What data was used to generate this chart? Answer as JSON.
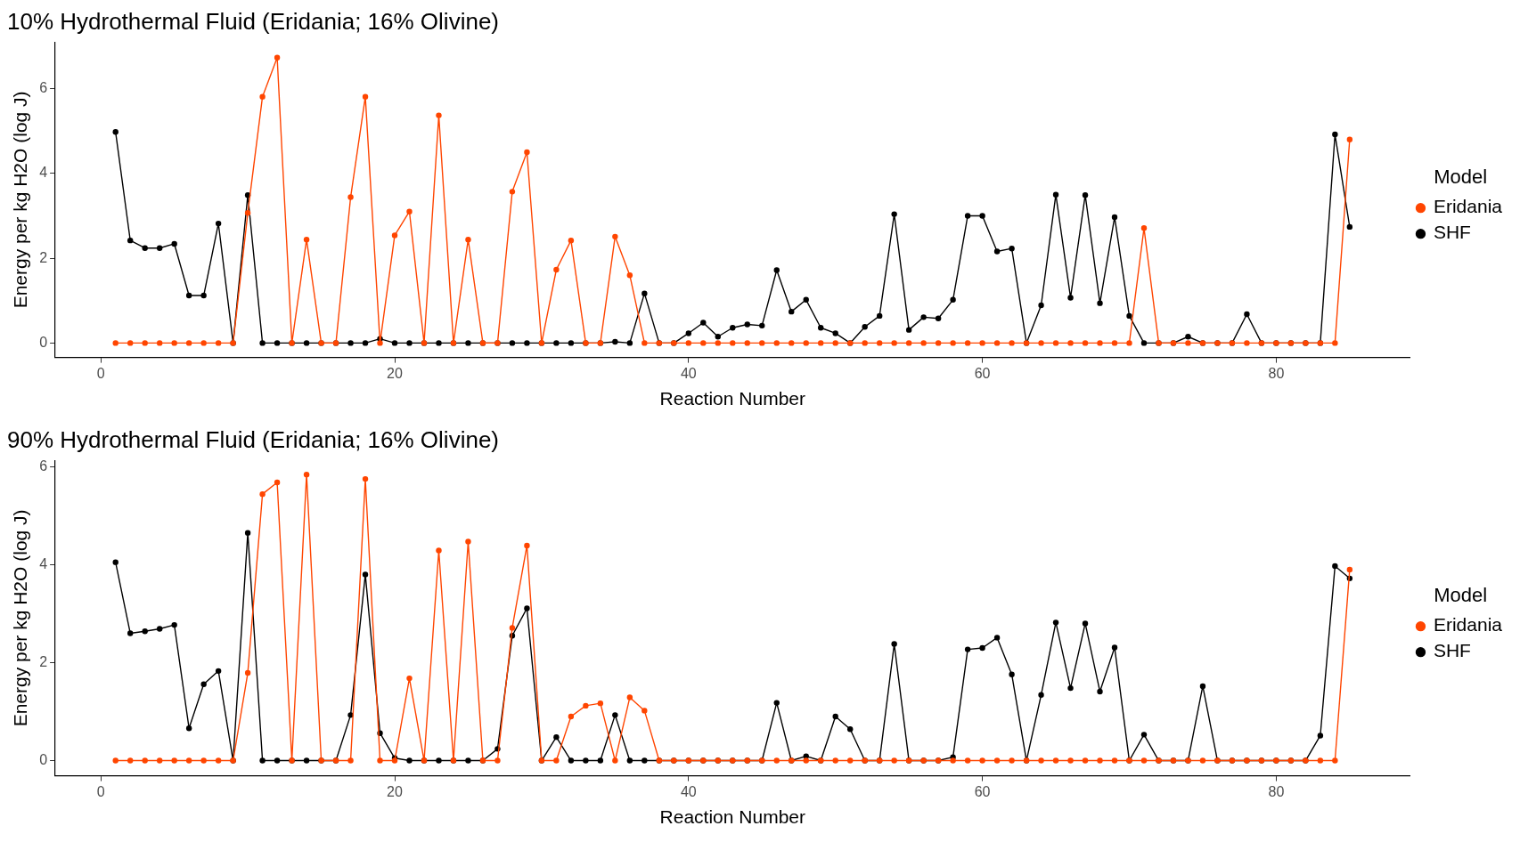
{
  "chart_data": [
    {
      "type": "line",
      "title": "10% Hydrothermal Fluid (Eridania; 16% Olivine)",
      "xlabel": "Reaction Number",
      "ylabel": "Energy per kg H2O (log J)",
      "legend_title": "Model",
      "legend": "right",
      "grid": false,
      "marker": "circle",
      "line_style": "solid",
      "x": [
        1,
        2,
        3,
        4,
        5,
        6,
        7,
        8,
        9,
        10,
        11,
        12,
        13,
        14,
        15,
        16,
        17,
        18,
        19,
        20,
        21,
        22,
        23,
        24,
        25,
        26,
        27,
        28,
        29,
        30,
        31,
        32,
        33,
        34,
        35,
        36,
        37,
        38,
        39,
        40,
        41,
        42,
        43,
        44,
        45,
        46,
        47,
        48,
        49,
        50,
        51,
        52,
        53,
        54,
        55,
        56,
        57,
        58,
        59,
        60,
        61,
        62,
        63,
        64,
        65,
        66,
        67,
        68,
        69,
        70,
        71,
        72,
        73,
        74,
        75,
        76,
        77,
        78,
        79,
        80,
        81,
        82,
        83,
        84,
        85
      ],
      "xlim": [
        -3.1,
        89.1
      ],
      "xticks": [
        0,
        20,
        40,
        60,
        80
      ],
      "ylim": [
        -0.34,
        7.1
      ],
      "yticks": [
        0,
        2,
        4,
        6
      ],
      "series": [
        {
          "name": "Eridania",
          "color": "#ff4500",
          "values": [
            0,
            0,
            0,
            0,
            0,
            0,
            0,
            0,
            0,
            3.07,
            5.81,
            6.73,
            0,
            2.44,
            0,
            0,
            3.44,
            5.81,
            0,
            2.54,
            3.1,
            0,
            5.37,
            0,
            2.44,
            0,
            0,
            3.57,
            4.5,
            0,
            1.73,
            2.42,
            0,
            0,
            2.51,
            1.6,
            0,
            0,
            0,
            0,
            0,
            0,
            0,
            0,
            0,
            0,
            0,
            0,
            0,
            0,
            0,
            0,
            0,
            0,
            0,
            0,
            0,
            0,
            0,
            0,
            0,
            0,
            0,
            0,
            0,
            0,
            0,
            0,
            0,
            0,
            2.71,
            0,
            0,
            0,
            0,
            0,
            0,
            0,
            0,
            0,
            0,
            0,
            0,
            0,
            4.8
          ]
        },
        {
          "name": "SHF",
          "color": "#000000",
          "values": [
            4.98,
            2.42,
            2.24,
            2.24,
            2.34,
            1.12,
            1.12,
            2.82,
            0,
            3.49,
            0,
            0,
            0,
            0,
            0,
            0,
            0,
            0,
            0.1,
            0,
            0,
            0,
            0,
            0,
            0,
            0,
            0,
            0,
            0,
            0,
            0,
            0,
            0,
            0,
            0.03,
            0,
            1.17,
            0,
            0,
            0.23,
            0.48,
            0.15,
            0.36,
            0.44,
            0.41,
            1.72,
            0.74,
            1.02,
            0.36,
            0.23,
            0,
            0.38,
            0.64,
            3.04,
            0.31,
            0.61,
            0.58,
            1.02,
            3.0,
            3.0,
            2.16,
            2.23,
            0,
            0.89,
            3.5,
            1.07,
            3.49,
            0.94,
            2.97,
            0.64,
            0,
            0,
            0,
            0.15,
            0,
            0,
            0,
            0.68,
            0,
            0,
            0,
            0,
            0,
            4.92,
            2.74
          ]
        }
      ]
    },
    {
      "type": "line",
      "title": "90% Hydrothermal Fluid (Eridania; 16% Olivine)",
      "xlabel": "Reaction Number",
      "ylabel": "Energy per kg H2O (log J)",
      "legend_title": "Model",
      "legend": "right",
      "grid": false,
      "marker": "circle",
      "line_style": "solid",
      "x": [
        1,
        2,
        3,
        4,
        5,
        6,
        7,
        8,
        9,
        10,
        11,
        12,
        13,
        14,
        15,
        16,
        17,
        18,
        19,
        20,
        21,
        22,
        23,
        24,
        25,
        26,
        27,
        28,
        29,
        30,
        31,
        32,
        33,
        34,
        35,
        36,
        37,
        38,
        39,
        40,
        41,
        42,
        43,
        44,
        45,
        46,
        47,
        48,
        49,
        50,
        51,
        52,
        53,
        54,
        55,
        56,
        57,
        58,
        59,
        60,
        61,
        62,
        63,
        64,
        65,
        66,
        67,
        68,
        69,
        70,
        71,
        72,
        73,
        74,
        75,
        76,
        77,
        78,
        79,
        80,
        81,
        82,
        83,
        84,
        85
      ],
      "xlim": [
        -3.1,
        89.1
      ],
      "xticks": [
        0,
        20,
        40,
        60,
        80
      ],
      "ylim": [
        -0.31,
        6.13
      ],
      "yticks": [
        0,
        2,
        4,
        6
      ],
      "series": [
        {
          "name": "Eridania",
          "color": "#ff4500",
          "values": [
            0,
            0,
            0,
            0,
            0,
            0,
            0,
            0,
            0,
            1.79,
            5.44,
            5.68,
            0,
            5.84,
            0,
            0,
            0,
            5.75,
            0,
            0,
            1.68,
            0,
            4.29,
            0,
            4.47,
            0,
            0,
            2.71,
            4.39,
            0,
            0,
            0.9,
            1.12,
            1.17,
            0,
            1.29,
            1.02,
            0,
            0,
            0,
            0,
            0,
            0,
            0,
            0,
            0,
            0,
            0,
            0,
            0,
            0,
            0,
            0,
            0,
            0,
            0,
            0,
            0,
            0,
            0,
            0,
            0,
            0,
            0,
            0,
            0,
            0,
            0,
            0,
            0,
            0,
            0,
            0,
            0,
            0,
            0,
            0,
            0,
            0,
            0,
            0,
            0,
            0,
            0,
            3.9
          ]
        },
        {
          "name": "SHF",
          "color": "#000000",
          "values": [
            4.05,
            2.6,
            2.64,
            2.69,
            2.77,
            0.66,
            1.56,
            1.83,
            0,
            4.65,
            0,
            0,
            0,
            0,
            0,
            0,
            0.93,
            3.8,
            0.56,
            0.05,
            0,
            0,
            0,
            0,
            0,
            0,
            0.24,
            2.55,
            3.11,
            0,
            0.48,
            0,
            0,
            0,
            0.93,
            0,
            0,
            0,
            0,
            0,
            0,
            0,
            0,
            0,
            0,
            1.18,
            0,
            0.09,
            0,
            0.9,
            0.64,
            0,
            0,
            2.38,
            0,
            0,
            0,
            0.07,
            2.27,
            2.3,
            2.51,
            1.76,
            0,
            1.34,
            2.82,
            1.48,
            2.8,
            1.41,
            2.31,
            0,
            0.53,
            0,
            0,
            0,
            1.52,
            0,
            0,
            0,
            0,
            0,
            0,
            0,
            0.51,
            3.97,
            3.72
          ]
        }
      ]
    }
  ]
}
